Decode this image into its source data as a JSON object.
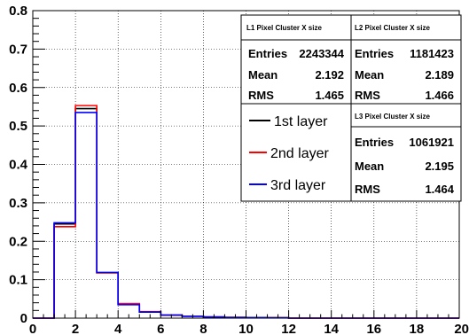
{
  "chart_data": {
    "type": "histogram-step",
    "xlim": [
      0,
      20
    ],
    "ylim": [
      0,
      0.8
    ],
    "bin_edges": [
      0,
      1,
      2,
      3,
      4,
      5,
      6,
      7,
      8,
      9,
      10,
      11,
      12,
      13,
      14,
      15,
      16,
      17,
      18,
      19,
      20
    ],
    "x_ticks": [
      0,
      2,
      4,
      6,
      8,
      10,
      12,
      14,
      16,
      18,
      20
    ],
    "y_ticks": [
      0,
      0.1,
      0.2,
      0.3,
      0.4,
      0.5,
      0.6,
      0.7,
      0.8
    ],
    "x_tick_labels": [
      "0",
      "2",
      "4",
      "6",
      "8",
      "10",
      "12",
      "14",
      "16",
      "18",
      "20"
    ],
    "y_tick_labels": [
      "0",
      "0.1",
      "0.2",
      "0.3",
      "0.4",
      "0.5",
      "0.6",
      "0.7",
      "0.8"
    ],
    "grid": true,
    "series": [
      {
        "name": "1st layer",
        "color": "#000000",
        "values": [
          0,
          0.245,
          0.545,
          0.118,
          0.036,
          0.016,
          0.008,
          0.005,
          0.003,
          0.002,
          0.0015,
          0.001,
          0,
          0,
          0,
          0,
          0,
          0,
          0,
          0
        ]
      },
      {
        "name": "2nd layer",
        "color": "#ff0000",
        "values": [
          0,
          0.238,
          0.553,
          0.118,
          0.038,
          0.017,
          0.008,
          0.005,
          0.003,
          0.002,
          0.0015,
          0.001,
          0,
          0,
          0,
          0,
          0,
          0,
          0,
          0
        ]
      },
      {
        "name": "3rd layer",
        "color": "#0000ff",
        "values": [
          0,
          0.248,
          0.535,
          0.119,
          0.035,
          0.016,
          0.008,
          0.005,
          0.003,
          0.002,
          0.0015,
          0.001,
          0,
          0,
          0,
          0,
          0,
          0,
          0,
          0
        ]
      }
    ],
    "stats": [
      {
        "title": "L1 Pixel Cluster X size",
        "entries_label": "Entries",
        "entries": "2243344",
        "mean_label": "Mean",
        "mean": "2.192",
        "rms_label": "RMS",
        "rms": "1.465"
      },
      {
        "title": "L2 Pixel Cluster X size",
        "entries_label": "Entries",
        "entries": "1181423",
        "mean_label": "Mean",
        "mean": "2.189",
        "rms_label": "RMS",
        "rms": "1.466"
      },
      {
        "title": "L3 Pixel Cluster X size",
        "entries_label": "Entries",
        "entries": "1061921",
        "mean_label": "Mean",
        "mean": "2.195",
        "rms_label": "RMS",
        "rms": "1.464"
      }
    ]
  }
}
